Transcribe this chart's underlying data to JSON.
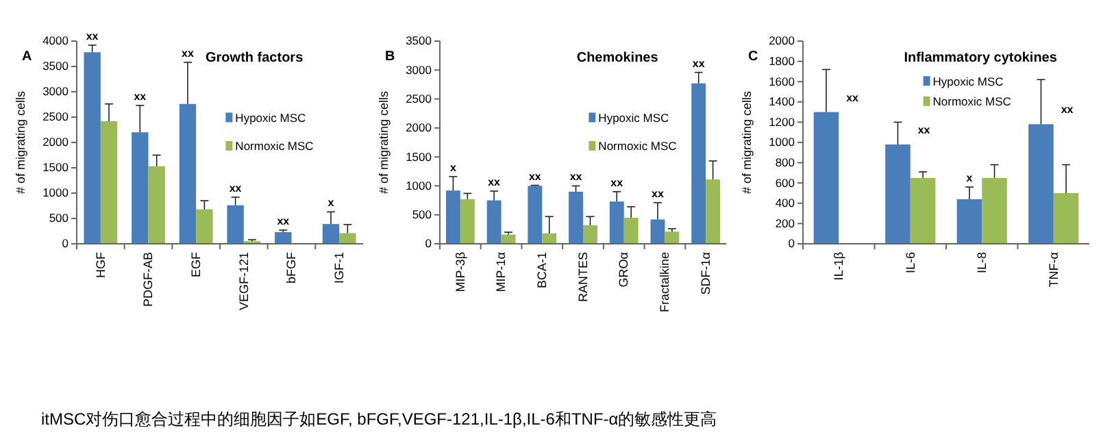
{
  "chart_data": [
    {
      "type": "bar",
      "title": "Growth factors",
      "ylabel": "# of migrating cells",
      "categories": [
        "HGF",
        "PDGF-AB",
        "EGF",
        "VEGF-121",
        "bFGF",
        "IGF-1"
      ],
      "ylim": [
        0,
        4000
      ],
      "yticks": [
        0,
        500,
        1000,
        1500,
        2000,
        2500,
        3000,
        3500,
        4000
      ],
      "legend": "right",
      "series": [
        {
          "name": "Hypoxic MSC",
          "color": "#4a7ebb",
          "values": [
            3780,
            2200,
            2760,
            760,
            230,
            390
          ],
          "errors": [
            [
              3780,
              3920
            ],
            [
              2200,
              2730
            ],
            [
              2760,
              3580
            ],
            [
              760,
              920
            ],
            [
              230,
              270
            ],
            [
              390,
              630
            ]
          ]
        },
        {
          "name": "Normoxic MSC",
          "color": "#9bbb59",
          "values": [
            2420,
            1530,
            680,
            50,
            null,
            210
          ],
          "errors": [
            [
              2420,
              2760
            ],
            [
              1530,
              1750
            ],
            [
              680,
              850
            ],
            [
              50,
              80
            ],
            null,
            [
              210,
              380
            ]
          ]
        }
      ],
      "annotations": [
        "A",
        "itMSC对伤口愈合过程中的细胞因子如EGF, bFGF,VEGF-121,IL-1β,IL-6和TNF-α的敏感性更高",
        {
          "text": "xx",
          "x": "HGF",
          "y": 3920
        },
        {
          "text": "xx",
          "x": "PDGF-AB",
          "y": 2730
        },
        {
          "text": "xx",
          "x": "EGF",
          "y": 3580
        },
        {
          "text": "xx",
          "x": "VEGF-121",
          "y": 920
        },
        {
          "text": "xx",
          "x": "bFGF",
          "y": 270
        },
        {
          "text": "x",
          "x": "IGF-1",
          "y": 630
        }
      ]
    },
    {
      "type": "bar",
      "title": "Chemokines",
      "ylabel": "# of migrating cells",
      "categories": [
        "MIP-3β",
        "MIP-1α",
        "BCA-1",
        "RANTES",
        "GROα",
        "Fractalkine",
        "SDF-1α"
      ],
      "ylim": [
        0,
        3500
      ],
      "yticks": [
        0,
        500,
        1000,
        1500,
        2000,
        2500,
        3000,
        3500
      ],
      "legend": "right",
      "series": [
        {
          "name": "Hypoxic MSC",
          "color": "#4a7ebb",
          "values": [
            920,
            750,
            1000,
            900,
            730,
            420,
            2770
          ],
          "errors": [
            [
              920,
              1160
            ],
            [
              750,
              910
            ],
            [
              1000,
              1010
            ],
            [
              900,
              1000
            ],
            [
              730,
              900
            ],
            [
              420,
              710
            ],
            [
              2770,
              2960
            ]
          ]
        },
        {
          "name": "Normoxic MSC",
          "color": "#9bbb59",
          "values": [
            770,
            160,
            180,
            320,
            450,
            210,
            1110
          ],
          "errors": [
            [
              770,
              870
            ],
            [
              160,
              200
            ],
            [
              180,
              470
            ],
            [
              320,
              470
            ],
            [
              450,
              640
            ],
            [
              210,
              260
            ],
            [
              1110,
              1430
            ]
          ]
        }
      ],
      "annotations": [
        "B",
        {
          "text": "x",
          "x": "MIP-3β",
          "y": 1160
        },
        {
          "text": "xx",
          "x": "MIP-1α",
          "y": 910
        },
        {
          "text": "xx",
          "x": "BCA-1",
          "y": 1010
        },
        {
          "text": "xx",
          "x": "RANTES",
          "y": 1000
        },
        {
          "text": "xx",
          "x": "GROα",
          "y": 900
        },
        {
          "text": "xx",
          "x": "Fractalkine",
          "y": 710
        },
        {
          "text": "xx",
          "x": "SDF-1α",
          "y": 2960
        }
      ]
    },
    {
      "type": "bar",
      "title": "Inflammatory cytokines",
      "ylabel": "# of migrating cells",
      "categories": [
        "IL-1β",
        "IL-6",
        "IL-8",
        "TNF-α"
      ],
      "ylim": [
        0,
        2000
      ],
      "yticks": [
        0,
        200,
        400,
        600,
        800,
        1000,
        1200,
        1400,
        1600,
        1800,
        2000
      ],
      "legend": "right",
      "series": [
        {
          "name": "Hypoxic MSC",
          "color": "#4a7ebb",
          "values": [
            1300,
            980,
            440,
            1180
          ],
          "errors": [
            [
              1300,
              1720
            ],
            [
              980,
              1200
            ],
            [
              440,
              560
            ],
            [
              1180,
              1620
            ]
          ]
        },
        {
          "name": "Normoxic MSC",
          "color": "#9bbb59",
          "values": [
            null,
            650,
            650,
            500
          ],
          "errors": [
            null,
            [
              650,
              710
            ],
            [
              650,
              780
            ],
            [
              500,
              780
            ]
          ]
        }
      ],
      "annotations": [
        "C",
        {
          "text": "xx",
          "x": "IL-1β",
          "y": 1300
        },
        {
          "text": "xx",
          "x": "IL-6",
          "y": 980
        },
        {
          "text": "x",
          "x": "IL-8",
          "y": 560
        },
        {
          "text": "xx",
          "x": "TNF-α",
          "y": 1180
        }
      ]
    }
  ]
}
